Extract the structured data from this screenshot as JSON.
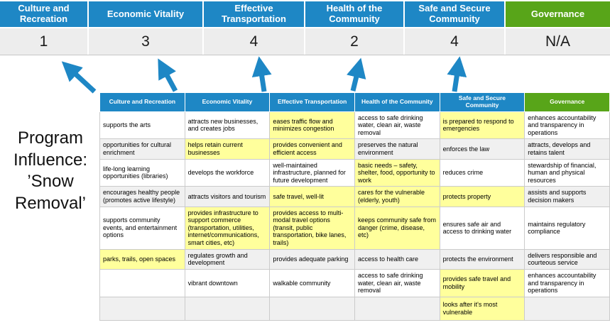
{
  "colors": {
    "header_blue": "#1e87c5",
    "header_green": "#58a519",
    "score_band_bg": "#ededed",
    "highlight_yellow": "#ffff9c",
    "row_alt_bg": "#f0f0f0",
    "arrow_blue": "#1e87c5"
  },
  "program_label": "Program Influence: ’Snow Removal’",
  "scoreboard": {
    "columns": [
      {
        "label": "Culture and Recreation",
        "score": "1"
      },
      {
        "label": "Economic Vitality",
        "score": "3"
      },
      {
        "label": "Effective Transportation",
        "score": "4"
      },
      {
        "label": "Health of the Community",
        "score": "2"
      },
      {
        "label": "Safe and Secure Community",
        "score": "4"
      },
      {
        "label": "Governance",
        "score": "N/A"
      }
    ]
  },
  "matrix": {
    "headers": [
      "Culture and Recreation",
      "Economic Vitality",
      "Effective Transportation",
      "Health of the Community",
      "Safe and Secure Community",
      "Governance"
    ],
    "rows": [
      {
        "cells": [
          {
            "text": "supports the arts",
            "hl": false
          },
          {
            "text": "attracts new businesses, and creates jobs",
            "hl": false
          },
          {
            "text": "eases traffic flow and minimizes congestion",
            "hl": true
          },
          {
            "text": "access to safe drinking water, clean air, waste removal",
            "hl": false
          },
          {
            "text": "is prepared to respond to emergencies",
            "hl": true
          },
          {
            "text": "enhances accountability and transparency in operations",
            "hl": false
          }
        ]
      },
      {
        "cells": [
          {
            "text": "opportunities for cultural enrichment",
            "hl": false
          },
          {
            "text": "helps retain current businesses",
            "hl": true
          },
          {
            "text": "provides convenient and efficient access",
            "hl": true
          },
          {
            "text": "preserves the natural environment",
            "hl": false
          },
          {
            "text": "enforces the law",
            "hl": false
          },
          {
            "text": "attracts, develops and retains talent",
            "hl": false
          }
        ]
      },
      {
        "cells": [
          {
            "text": "life-long learning opportunities (libraries)",
            "hl": false
          },
          {
            "text": "develops the workforce",
            "hl": false
          },
          {
            "text": "well-maintained infrastructure, planned for future development",
            "hl": false
          },
          {
            "text": "basic needs – safety, shelter, food, opportunity to work",
            "hl": true
          },
          {
            "text": "reduces crime",
            "hl": false
          },
          {
            "text": "stewardship of financial, human and physical resources",
            "hl": false
          }
        ]
      },
      {
        "cells": [
          {
            "text": "encourages healthy people (promotes active lifestyle)",
            "hl": false
          },
          {
            "text": "attracts visitors and tourism",
            "hl": false
          },
          {
            "text": "safe travel, well-lit",
            "hl": true
          },
          {
            "text": "cares for the vulnerable (elderly, youth)",
            "hl": true
          },
          {
            "text": "protects property",
            "hl": true
          },
          {
            "text": "assists and supports decision makers",
            "hl": false
          }
        ]
      },
      {
        "cells": [
          {
            "text": "supports community events, and entertainment options",
            "hl": false
          },
          {
            "text": "provides infrastructure to support commerce (transportation, utilities, internet/communications, smart cities, etc)",
            "hl": true
          },
          {
            "text": "provides access to multi-modal travel options (transit, public transportation, bike lanes, trails)",
            "hl": true
          },
          {
            "text": "keeps community safe from danger (crime, disease, etc)",
            "hl": true
          },
          {
            "text": "ensures safe air and access to drinking water",
            "hl": false
          },
          {
            "text": "maintains regulatory compliance",
            "hl": false
          }
        ]
      },
      {
        "cells": [
          {
            "text": "parks, trails, open spaces",
            "hl": true
          },
          {
            "text": "regulates growth and development",
            "hl": false
          },
          {
            "text": "provides adequate parking",
            "hl": false
          },
          {
            "text": "access to health care",
            "hl": false
          },
          {
            "text": "protects the environment",
            "hl": false
          },
          {
            "text": "delivers responsible and courteous service",
            "hl": false
          }
        ]
      },
      {
        "cells": [
          {
            "text": "",
            "hl": false
          },
          {
            "text": "vibrant downtown",
            "hl": false
          },
          {
            "text": "walkable community",
            "hl": false
          },
          {
            "text": "access to safe drinking water, clean air, waste removal",
            "hl": false
          },
          {
            "text": "provides safe travel and mobility",
            "hl": true
          },
          {
            "text": "enhances accountability and transparency in operations",
            "hl": false
          }
        ]
      },
      {
        "cells": [
          {
            "text": "",
            "hl": false
          },
          {
            "text": "",
            "hl": false
          },
          {
            "text": "",
            "hl": false
          },
          {
            "text": "",
            "hl": false
          },
          {
            "text": "looks after it's most vulnerable",
            "hl": true
          },
          {
            "text": "",
            "hl": false
          }
        ]
      }
    ]
  }
}
